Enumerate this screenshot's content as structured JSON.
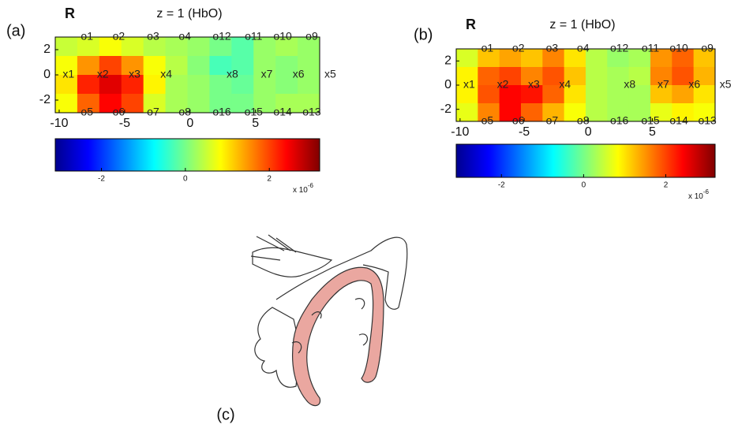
{
  "panels": [
    {
      "label": "(a)",
      "orientation": "R",
      "title": "z = 1 (HbO)",
      "channels": [
        [
          "o1",
          "o2",
          "o3",
          "o4",
          "o12",
          "o11",
          "o10",
          "o9"
        ],
        [
          "x1",
          "x2",
          "x3",
          "x4",
          "x8",
          "x7",
          "x6",
          "x5"
        ],
        [
          "o5",
          "o6",
          "o7",
          "o8",
          "o16",
          "o15",
          "o14",
          "o13"
        ]
      ],
      "heatmap": {
        "xlim": [
          -10.3,
          9.9
        ],
        "ylim": [
          -3,
          3
        ],
        "xticks": [
          -10,
          -5,
          0,
          5
        ],
        "yticks": [
          2,
          0,
          -2
        ],
        "values": [
          [
            0.5,
            0.6,
            0.8,
            0.6,
            0.4,
            0.3,
            0.2,
            0,
            -0.2,
            0.2,
            0.3,
            0.2
          ],
          [
            0.8,
            1.5,
            2,
            1.5,
            0.8,
            0.4,
            0.1,
            -0.3,
            -0.2,
            0.2,
            0.1,
            0.2
          ],
          [
            1,
            2.2,
            2.6,
            2.2,
            0.9,
            0.3,
            0.2,
            0,
            -0.1,
            0.2,
            0.1,
            0.2
          ],
          [
            0.8,
            1.8,
            2.4,
            2,
            0.6,
            0.3,
            0.2,
            0,
            0,
            0.2,
            0.3,
            0.3
          ]
        ]
      },
      "colorbar": {
        "clim": [
          -3.1,
          3.2
        ],
        "ticks": [
          -2,
          0,
          2
        ],
        "scale_base": "x 10",
        "scale_exponent": "-6"
      }
    },
    {
      "label": "(b)",
      "orientation": "R",
      "title": "z = 1 (HbO)",
      "channels": [
        [
          "o1",
          "o2",
          "o3",
          "o4",
          "o12",
          "o11",
          "o10",
          "o9"
        ],
        [
          "x1",
          "x2",
          "x3",
          "x4",
          "x8",
          "x7",
          "x6",
          "x5"
        ],
        [
          "o5",
          "o6",
          "o7",
          "o8",
          "o16",
          "o15",
          "o14",
          "o13"
        ]
      ],
      "heatmap": {
        "xlim": [
          -10.3,
          9.9
        ],
        "ylim": [
          -3,
          3
        ],
        "xticks": [
          -10,
          -5,
          0,
          5
        ],
        "yticks": [
          2,
          0,
          -2
        ],
        "values": [
          [
            0.6,
            1.2,
            1.4,
            1.2,
            1.6,
            1,
            0.4,
            0.2,
            0.3,
            1.5,
            1.8,
            1.2
          ],
          [
            0.9,
            1.8,
            2,
            1.6,
            1.9,
            1.2,
            0.4,
            0.3,
            0.4,
            1.6,
            1.9,
            1.3
          ],
          [
            0.9,
            1.9,
            2.4,
            2.3,
            1.8,
            1,
            0.4,
            0.3,
            0.3,
            1.2,
            1.4,
            1
          ],
          [
            0.7,
            1.6,
            2.4,
            1.8,
            1.3,
            0.8,
            0.4,
            0.3,
            0.3,
            0.7,
            0.9,
            0.8
          ]
        ]
      },
      "colorbar": {
        "clim": [
          -3.1,
          3.2
        ],
        "ticks": [
          -2,
          0,
          2
        ],
        "scale_base": "x 10",
        "scale_exponent": "-6"
      }
    }
  ],
  "illustration": {
    "label": "(c)"
  }
}
